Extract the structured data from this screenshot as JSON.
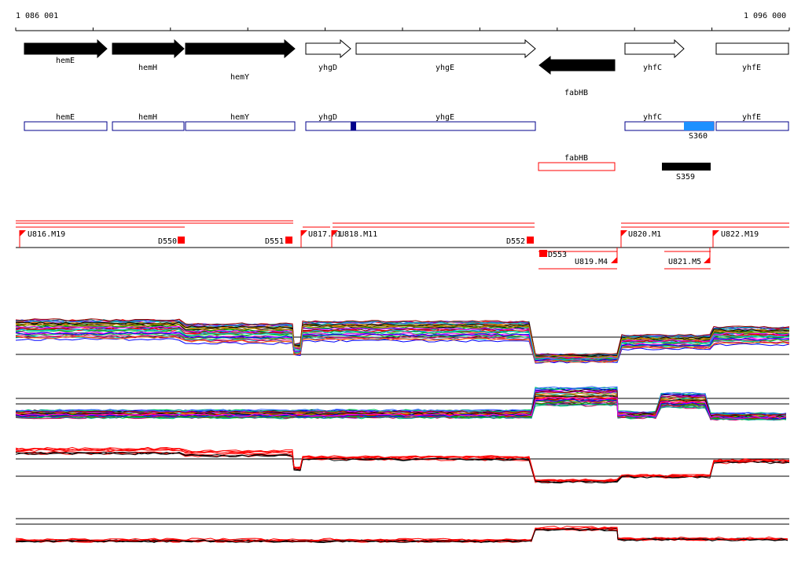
{
  "coords": {
    "start_label": "1 086 001",
    "end_label": "1 096 000"
  },
  "genes": [
    {
      "name": "hemE",
      "strand": "+",
      "fill": "#000000",
      "label_row": 0
    },
    {
      "name": "hemH",
      "strand": "+",
      "fill": "#000000",
      "label_row": 1
    },
    {
      "name": "hemY",
      "strand": "+",
      "fill": "#000000",
      "label_row": 2
    },
    {
      "name": "yhgD",
      "strand": "+",
      "fill": "#ffffff",
      "label_row": 0
    },
    {
      "name": "yhgE",
      "strand": "+",
      "fill": "#ffffff",
      "label_row": 0
    },
    {
      "name": "fabHB",
      "strand": "-",
      "fill": "#000000",
      "label_row": 3
    },
    {
      "name": "yhfC",
      "strand": "+",
      "fill": "#ffffff",
      "label_row": 0
    },
    {
      "name": "yhfE",
      "strand": "+",
      "fill": "#ffffff",
      "label_row": 0
    }
  ],
  "annotation_boxes": [
    {
      "name": "hemE",
      "color": "#00008b"
    },
    {
      "name": "hemH",
      "color": "#00008b"
    },
    {
      "name": "hemY",
      "color": "#00008b"
    },
    {
      "name": "yhgD",
      "color": "#00008b"
    },
    {
      "name": "yhgE",
      "color": "#00008b"
    },
    {
      "name": "yhfC",
      "color": "#00008b"
    },
    {
      "name": "yhfE",
      "color": "#00008b"
    },
    {
      "name": "fabHB",
      "color": "#ff0000"
    }
  ],
  "features": [
    {
      "name": "S360",
      "color": "#1e90ff"
    },
    {
      "name": "S359",
      "color": "#000000"
    }
  ],
  "segments": {
    "up_labels": [
      "U816.M19",
      "U817.M1",
      "U818.M11",
      "U820.M1",
      "U822.M19"
    ],
    "down_labels": [
      "D550",
      "D551",
      "D552",
      "D553"
    ],
    "reverse_labels": [
      "U819.M4",
      "U821.M5"
    ]
  },
  "colors": {
    "accent": "#ff0000",
    "annotation": "#00008b",
    "track": "#000000"
  }
}
